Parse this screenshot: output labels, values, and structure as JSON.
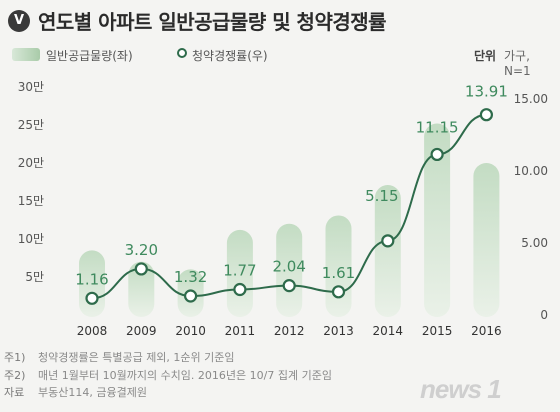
{
  "title": "연도별 아파트 일반공급물량 및 청약경쟁률",
  "badge": "V",
  "legend": {
    "bar_label": "일반공급물량(좌)",
    "line_label": "청약경쟁률(우)",
    "unit_label": "단위",
    "unit_text": "가구, N=1"
  },
  "notes": [
    {
      "key": "주1)",
      "text": "청약경쟁률은 특별공급 제외, 1순위 기준임"
    },
    {
      "key": "주2)",
      "text": "매년 1월부터 10월까지의 수치임. 2016년은 10/7 집계 기준임"
    },
    {
      "key": "자료",
      "text": "부동산114, 금융결제원"
    }
  ],
  "logo": "news 1",
  "colors": {
    "bar_top": "#c3dcc3",
    "bar_bottom": "#e6efe4",
    "line": "#2e6b4b",
    "label": "#3f8a5e"
  },
  "chart_data": {
    "type": "bar+line",
    "categories": [
      "2008",
      "2009",
      "2010",
      "2011",
      "2012",
      "2013",
      "2014",
      "2015",
      "2016"
    ],
    "series": [
      {
        "name": "일반공급물량(좌)",
        "type": "bar",
        "axis": "left",
        "values": [
          85000,
          70000,
          60000,
          112000,
          120000,
          131000,
          171000,
          252000,
          200000
        ]
      },
      {
        "name": "청약경쟁률(우)",
        "type": "line",
        "axis": "right",
        "values": [
          1.16,
          3.2,
          1.32,
          1.77,
          2.04,
          1.61,
          5.15,
          11.15,
          13.91
        ]
      }
    ],
    "left_axis": {
      "ticks": [
        "5만",
        "10만",
        "15만",
        "20만",
        "25만",
        "30만"
      ],
      "tick_values": [
        50000,
        100000,
        150000,
        200000,
        250000,
        300000
      ],
      "ylim": [
        0,
        300000
      ]
    },
    "right_axis": {
      "ticks": [
        "0",
        "5.00",
        "10.00",
        "15.00"
      ],
      "tick_values": [
        0,
        5,
        10,
        15
      ],
      "ylim": [
        0,
        16.5
      ]
    },
    "data_labels": [
      "1.16",
      "3.20",
      "1.32",
      "1.77",
      "2.04",
      "1.61",
      "5.15",
      "11.15",
      "13.91"
    ],
    "grid": false
  }
}
